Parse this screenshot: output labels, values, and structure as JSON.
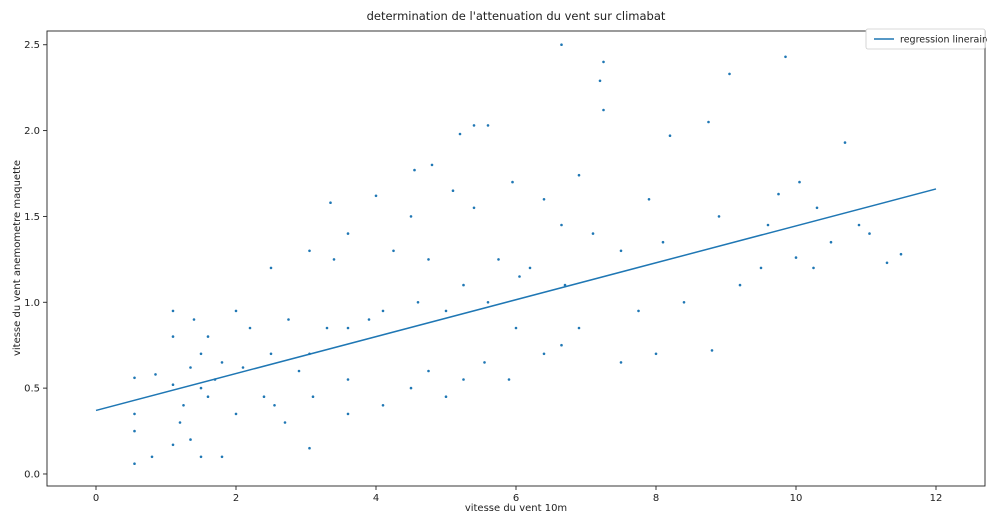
{
  "chart_data": {
    "type": "scatter",
    "title": "determination de l'attenuation du vent sur climabat",
    "xlabel": "vitesse du vent 10m",
    "ylabel": "vitesse du vent anemometre maquette",
    "xlim": [
      -0.7,
      12.7
    ],
    "ylim": [
      -0.07,
      2.58
    ],
    "xticks": [
      "0",
      "2",
      "4",
      "6",
      "8",
      "10",
      "12"
    ],
    "yticks": [
      "0.0",
      "0.5",
      "1.0",
      "1.5",
      "2.0",
      "2.5"
    ],
    "grid": false,
    "legend_position": "top-right",
    "color": "#1f77b4",
    "series": [
      {
        "name": "regression lineraire",
        "kind": "line",
        "x": [
          0,
          12
        ],
        "y": [
          0.37,
          1.66
        ]
      }
    ],
    "scatter": {
      "x": [
        0.55,
        0.55,
        0.55,
        0.55,
        0.8,
        0.85,
        1.1,
        1.1,
        1.1,
        1.1,
        1.2,
        1.25,
        1.35,
        1.35,
        1.4,
        1.5,
        1.5,
        1.5,
        1.6,
        1.6,
        1.7,
        1.8,
        1.8,
        2.0,
        2.0,
        2.1,
        2.2,
        2.4,
        2.5,
        2.5,
        2.55,
        2.7,
        2.75,
        2.9,
        3.05,
        3.05,
        3.05,
        3.1,
        3.3,
        3.4,
        3.6,
        3.6,
        3.6,
        3.6,
        3.9,
        4.1,
        4.1,
        4.25,
        4.5,
        4.5,
        4.6,
        4.75,
        4.75,
        4.8,
        5.0,
        5.0,
        5.1,
        5.25,
        5.25,
        5.4,
        5.4,
        5.55,
        5.6,
        5.6,
        5.75,
        5.9,
        5.95,
        6.0,
        6.05,
        6.2,
        6.4,
        6.4,
        6.65,
        6.65,
        6.65,
        6.7,
        6.9,
        7.1,
        7.25,
        7.25,
        7.5,
        7.5,
        7.75,
        7.9,
        8.0,
        8.1,
        8.2,
        8.4,
        8.8,
        8.9,
        9.05,
        9.2,
        9.5,
        9.6,
        9.75,
        9.85,
        10.05,
        10.25,
        10.3,
        10.5,
        10.7,
        10.9,
        11.05,
        11.3,
        11.5,
        8.75,
        10.0,
        4.0,
        6.9,
        5.2,
        7.2,
        3.35,
        4.55
      ],
      "y": [
        0.06,
        0.25,
        0.35,
        0.56,
        0.1,
        0.58,
        0.17,
        0.52,
        0.8,
        0.95,
        0.3,
        0.4,
        0.2,
        0.62,
        0.9,
        0.1,
        0.5,
        0.7,
        0.45,
        0.8,
        0.55,
        0.1,
        0.65,
        0.35,
        0.95,
        0.62,
        0.85,
        0.45,
        0.7,
        1.2,
        0.4,
        0.3,
        0.9,
        0.6,
        0.15,
        0.7,
        1.3,
        0.45,
        0.85,
        1.25,
        0.35,
        0.55,
        0.85,
        1.4,
        0.9,
        0.4,
        0.95,
        1.3,
        0.5,
        1.5,
        1.0,
        0.6,
        1.25,
        1.8,
        0.45,
        0.95,
        1.65,
        0.55,
        1.1,
        1.55,
        2.03,
        0.65,
        1.0,
        2.03,
        1.25,
        0.55,
        1.7,
        0.85,
        1.15,
        1.2,
        0.7,
        1.6,
        0.75,
        1.45,
        2.5,
        1.1,
        0.85,
        1.4,
        2.12,
        2.4,
        0.65,
        1.3,
        0.95,
        1.6,
        0.7,
        1.35,
        1.97,
        1.0,
        0.72,
        1.5,
        2.33,
        1.1,
        1.2,
        1.45,
        1.63,
        2.43,
        1.7,
        1.2,
        1.55,
        1.35,
        1.93,
        1.45,
        1.4,
        1.23,
        1.28,
        2.05,
        1.26,
        1.62,
        1.74,
        1.98,
        2.29,
        1.58,
        1.77
      ]
    }
  }
}
